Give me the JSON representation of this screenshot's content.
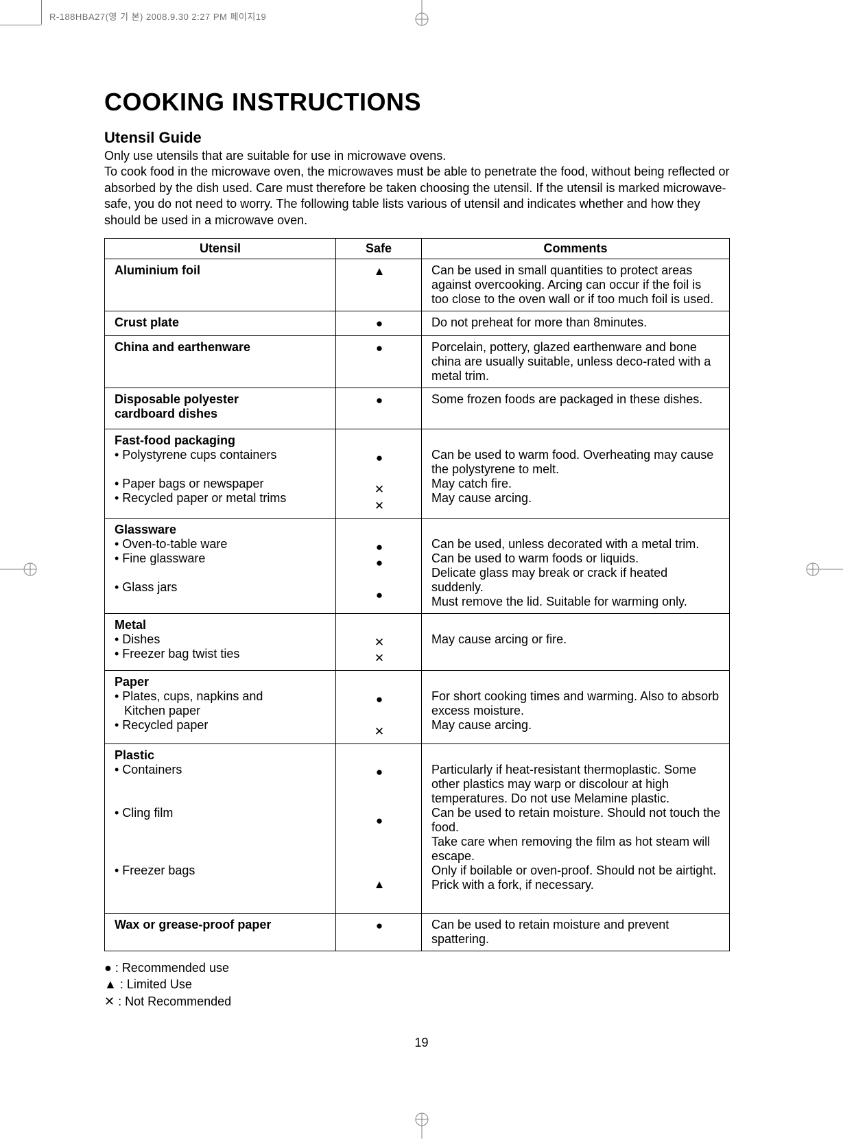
{
  "header_info": "R-188HBA27(영 기 본)  2008.9.30 2:27 PM  페이지19",
  "title": "COOKING INSTRUCTIONS",
  "subtitle": "Utensil Guide",
  "intro": "Only use utensils that are suitable for use in microwave ovens.\nTo cook food in the microwave oven, the microwaves must be able to penetrate the food, without being reflected or absorbed by the dish used. Care must therefore be taken choosing the utensil. If the utensil is marked microwave-safe, you do not need to worry. The following table lists various of utensil and indicates whether and how they should be used in a microwave oven.",
  "table": {
    "columns": [
      "Utensil",
      "Safe",
      "Comments"
    ],
    "symbols": {
      "recommended": "●",
      "limited": "▲",
      "not": "✕"
    },
    "rows": [
      {
        "utensil": [
          {
            "t": "Aluminium foil",
            "b": true
          }
        ],
        "safe": [
          "▲"
        ],
        "comments": [
          "Can be used in small quantities to protect areas against overcooking. Arcing can occur if the foil is too close to the oven wall or if too much foil is used."
        ]
      },
      {
        "utensil": [
          {
            "t": "Crust plate",
            "b": true
          }
        ],
        "safe": [
          "●"
        ],
        "comments": [
          "Do not preheat for more than 8minutes."
        ]
      },
      {
        "utensil": [
          {
            "t": "China and earthenware",
            "b": true
          }
        ],
        "safe": [
          "●"
        ],
        "comments": [
          "Porcelain, pottery, glazed earthenware and bone china are usually suitable, unless deco-rated with a metal trim."
        ]
      },
      {
        "utensil": [
          {
            "t": "Disposable polyester",
            "b": true
          },
          {
            "t": "cardboard dishes",
            "b": true
          }
        ],
        "safe": [
          "●",
          ""
        ],
        "comments": [
          "Some frozen foods are packaged in these dishes."
        ]
      },
      {
        "utensil": [
          {
            "t": "Fast-food packaging",
            "b": true
          },
          {
            "t": "• Polystyrene cups containers",
            "b": false
          },
          {
            "t": "",
            "b": false
          },
          {
            "t": "• Paper bags or newspaper",
            "b": false
          },
          {
            "t": "• Recycled paper or metal trims",
            "b": false
          }
        ],
        "safe": [
          "",
          "●",
          "",
          "✕",
          "✕"
        ],
        "comments": [
          "",
          "Can be used to warm food. Overheating may cause the polystyrene to melt.",
          "May catch fire.",
          "May cause arcing."
        ]
      },
      {
        "utensil": [
          {
            "t": "Glassware",
            "b": true
          },
          {
            "t": "• Oven-to-table ware",
            "b": false
          },
          {
            "t": "• Fine glassware",
            "b": false
          },
          {
            "t": "",
            "b": false
          },
          {
            "t": "• Glass jars",
            "b": false
          }
        ],
        "safe": [
          "",
          "●",
          "●",
          "",
          "●"
        ],
        "comments": [
          "",
          "Can be used, unless decorated with a metal trim.",
          "Can be used to warm foods or liquids.",
          "Delicate glass may break or crack if heated suddenly.",
          "Must remove the lid. Suitable for warming only."
        ]
      },
      {
        "utensil": [
          {
            "t": "Metal",
            "b": true
          },
          {
            "t": "• Dishes",
            "b": false
          },
          {
            "t": "• Freezer bag twist ties",
            "b": false
          }
        ],
        "safe": [
          "",
          "✕",
          "✕"
        ],
        "comments": [
          "",
          "May cause arcing or fire.",
          ""
        ]
      },
      {
        "utensil": [
          {
            "t": "Paper",
            "b": true
          },
          {
            "t": "• Plates, cups, napkins and",
            "b": false
          },
          {
            "t": "Kitchen paper",
            "b": false,
            "indent": true
          },
          {
            "t": "• Recycled paper",
            "b": false
          }
        ],
        "safe": [
          "",
          "●",
          "",
          "✕"
        ],
        "comments": [
          "",
          "For short cooking times and warming. Also to absorb excess moisture.",
          "May cause arcing."
        ]
      },
      {
        "utensil": [
          {
            "t": "Plastic",
            "b": true
          },
          {
            "t": "• Containers",
            "b": false
          },
          {
            "t": "",
            "b": false
          },
          {
            "t": "",
            "b": false
          },
          {
            "t": "• Cling film",
            "b": false
          },
          {
            "t": "",
            "b": false
          },
          {
            "t": "",
            "b": false
          },
          {
            "t": "",
            "b": false
          },
          {
            "t": "• Freezer bags",
            "b": false
          },
          {
            "t": "",
            "b": false
          }
        ],
        "safe": [
          "",
          "●",
          "",
          "",
          "●",
          "",
          "",
          "",
          "▲",
          ""
        ],
        "comments": [
          "",
          "Particularly if heat-resistant thermoplastic. Some other plastics may warp or discolour at high temperatures. Do not use Melamine plastic.",
          "Can be used to retain moisture. Should not touch the food.",
          "Take care when removing the film as hot steam will escape.",
          "Only if boilable or oven-proof. Should not be airtight. Prick with a fork, if necessary."
        ]
      },
      {
        "utensil": [
          {
            "t": "Wax or grease-proof paper",
            "b": true
          }
        ],
        "safe": [
          "●"
        ],
        "comments": [
          "Can be used to retain moisture and prevent spattering."
        ]
      }
    ]
  },
  "legend": [
    "● : Recommended use",
    "▲ : Limited Use",
    "✕ : Not Recommended"
  ],
  "page_number": "19"
}
